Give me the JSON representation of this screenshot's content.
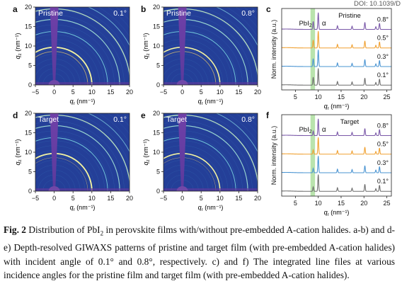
{
  "doi_text": "DOI: 10.1039/D",
  "panels": [
    {
      "letter": "a",
      "label": "Pristine",
      "angle": "0.1°"
    },
    {
      "letter": "b",
      "label": "Pristine",
      "angle": "0.8°"
    },
    {
      "letter": "d",
      "label": "Target",
      "angle": "0.1°"
    },
    {
      "letter": "e",
      "label": "Target",
      "angle": "0.8°"
    }
  ],
  "giwaxs_axes": {
    "x_label_main": "q",
    "x_label_sub": "r",
    "x_label_unit": " (nm⁻¹)",
    "y_label_main": "q",
    "y_label_sub": "z",
    "y_label_unit": " (nm⁻¹)",
    "x_ticks": [
      "−5",
      "0",
      "5",
      "10",
      "15",
      "20"
    ],
    "y_ticks": [
      "0",
      "5",
      "10",
      "15",
      "20"
    ]
  },
  "line_panels": [
    {
      "letter": "c",
      "label": "Pristine"
    },
    {
      "letter": "f",
      "label": "Target"
    }
  ],
  "line_axes": {
    "ylabel": "Norm. intensity (a.u.)",
    "x_label_main": "q",
    "x_label_sub": "r",
    "x_label_unit": " (nm⁻¹)",
    "x_ticks": [
      "5",
      "10",
      "15",
      "20",
      "25"
    ],
    "pbi_label_main": "PbI",
    "pbi_label_sub": "2",
    "alpha_label": "α"
  },
  "chart_data": [
    {
      "type": "line",
      "title": "Pristine",
      "xlabel": "q_r (nm^-1)",
      "ylabel": "Norm. intensity (a.u.)",
      "xlim": [
        2,
        26
      ],
      "series": [
        {
          "name": "0.1°",
          "color": "#6e6e6e",
          "peaks": [
            8.9,
            10.0,
            14.2,
            17.4,
            20.2,
            22.6,
            23.4
          ]
        },
        {
          "name": "0.3°",
          "color": "#4a94d2",
          "peaks": [
            8.9,
            10.0,
            14.2,
            17.4,
            20.2,
            22.6,
            23.4
          ]
        },
        {
          "name": "0.5°",
          "color": "#f0a030",
          "peaks": [
            8.9,
            10.0,
            14.2,
            17.4,
            20.2,
            22.6,
            23.4
          ]
        },
        {
          "name": "0.8°",
          "color": "#7a58a8",
          "peaks": [
            8.9,
            10.0,
            14.2,
            17.4,
            20.2,
            22.6,
            23.4
          ]
        }
      ],
      "highlight_band": [
        8.3,
        9.3
      ]
    },
    {
      "type": "line",
      "title": "Target",
      "xlabel": "q_r (nm^-1)",
      "ylabel": "Norm. intensity (a.u.)",
      "xlim": [
        2,
        26
      ],
      "series": [
        {
          "name": "0.1°",
          "color": "#6e6e6e",
          "peaks": [
            8.9,
            10.0,
            14.2,
            17.4,
            20.2,
            22.6,
            23.4
          ]
        },
        {
          "name": "0.3°",
          "color": "#4a94d2",
          "peaks": [
            8.9,
            10.0,
            14.2,
            17.4,
            20.2,
            22.6,
            23.4
          ]
        },
        {
          "name": "0.5°",
          "color": "#f0a030",
          "peaks": [
            8.9,
            10.0,
            14.2,
            17.4,
            20.2,
            22.6,
            23.4
          ]
        },
        {
          "name": "0.8°",
          "color": "#7a58a8",
          "peaks": [
            8.9,
            10.0,
            14.2,
            17.4,
            20.2,
            22.6,
            23.4
          ]
        }
      ],
      "highlight_band": [
        8.3,
        9.3
      ]
    }
  ],
  "caption": {
    "fig_label": "Fig. 2",
    "text_a": " Distribution of PbI",
    "sub_2": "2",
    "text_b": " in perovskite films with/without pre-embedded A-cation halides. a-b) and d-e) Depth-resolved GIWAXS patterns of pristine and target film (with pre-embedded A-cation halides) with incident angle of 0.1° and 0.8°, respectively. c) and f) The integrated line files at various incidence angles for the pristine film and target film (with pre-embedded A-cation halides)."
  }
}
